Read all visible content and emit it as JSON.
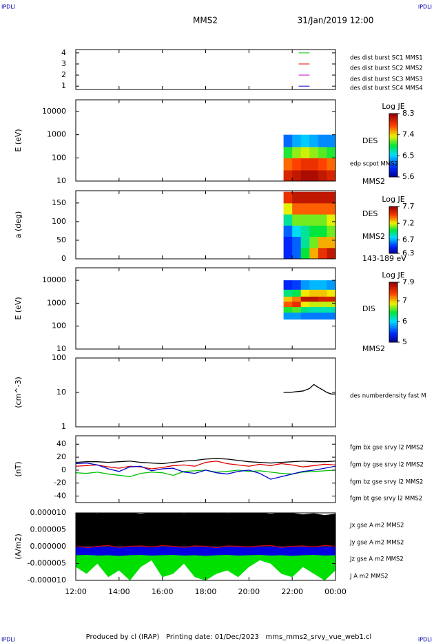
{
  "header": {
    "corner_labels": [
      "IPDLI",
      "IPDLI",
      "IPDLI",
      "IPDLI"
    ],
    "title": "MMS2",
    "date": "31/Jan/2019 12:00"
  },
  "footer": "Produced by cl (IRAP)   Printing date: 01/Dec/2023   mms_mms2_srvy_vue_web1.cl",
  "chart_data": [
    {
      "type": "availability",
      "xlim": [
        12,
        24
      ],
      "ylim": [
        0.7,
        4.3
      ],
      "yticks": [
        1,
        2,
        3,
        4
      ],
      "series": [
        {
          "name": "des dist burst SC1 MMS1",
          "color": "#0000c8",
          "x": [
            22.3,
            22.8
          ],
          "y": 1
        },
        {
          "name": "des dist burst SC2 MMS2",
          "color": "#d000d0",
          "x": [
            22.3,
            22.8
          ],
          "y": 2
        },
        {
          "name": "des dist burst SC3 MMS3",
          "color": "#e00000",
          "x": [
            22.3,
            22.8
          ],
          "y": 3
        },
        {
          "name": "des dist burst SC4 MMS4",
          "color": "#00c000",
          "x": [
            22.3,
            22.8
          ],
          "y": 4
        }
      ]
    },
    {
      "type": "heatmap",
      "ylabel": "E (eV)",
      "log": true,
      "xlim": [
        12,
        24
      ],
      "ylim": [
        10,
        32000
      ],
      "yticks": [
        10,
        100,
        1000,
        10000
      ],
      "annotations": [
        "DES",
        "edp scpot MMS2",
        "MMS2"
      ],
      "colorbar_label": "Log JE",
      "clim": [
        5.6,
        8.3
      ],
      "cticks": [
        5.6,
        6.5,
        7.4,
        8.3
      ],
      "x_bins": [
        21.6,
        22.0,
        22.4,
        22.8,
        23.2,
        23.6,
        24
      ],
      "y_bins": [
        10,
        30,
        100,
        300,
        1000
      ],
      "z": [
        [
          8.0,
          8.1,
          8.2,
          8.2,
          8.1,
          8.0
        ],
        [
          7.7,
          7.8,
          7.9,
          7.9,
          7.8,
          7.7
        ],
        [
          7.0,
          7.2,
          7.3,
          7.2,
          7.1,
          7.0
        ],
        [
          6.2,
          6.4,
          6.5,
          6.4,
          6.3,
          6.3
        ]
      ]
    },
    {
      "type": "heatmap",
      "ylabel": "a (deg)",
      "log": false,
      "xlim": [
        12,
        24
      ],
      "ylim": [
        0,
        183
      ],
      "yticks": [
        0,
        50,
        100,
        150
      ],
      "annotations": [
        "DES",
        "MMS2",
        "143-189 eV"
      ],
      "colorbar_label": "Log JE",
      "clim": [
        6.3,
        7.7
      ],
      "cticks": [
        6.3,
        6.7,
        7.2,
        7.7
      ],
      "x_bins": [
        21.6,
        22.0,
        22.4,
        22.8,
        23.2,
        23.6,
        24
      ],
      "y_bins": [
        0,
        30,
        60,
        90,
        120,
        150,
        180
      ],
      "z": [
        [
          6.5,
          6.6,
          7.0,
          7.3,
          7.5,
          7.6
        ],
        [
          6.5,
          6.6,
          6.9,
          7.1,
          7.3,
          7.3
        ],
        [
          6.6,
          6.8,
          6.9,
          7.0,
          7.0,
          7.1
        ],
        [
          6.9,
          7.1,
          7.1,
          7.1,
          7.1,
          7.2
        ],
        [
          7.2,
          7.4,
          7.4,
          7.4,
          7.4,
          7.4
        ],
        [
          7.5,
          7.6,
          7.6,
          7.6,
          7.6,
          7.6
        ]
      ]
    },
    {
      "type": "heatmap",
      "ylabel": "E (eV)",
      "log": true,
      "xlim": [
        12,
        24
      ],
      "ylim": [
        10,
        35000
      ],
      "yticks": [
        10,
        100,
        1000,
        10000
      ],
      "annotations": [
        "DIS",
        "MMS2"
      ],
      "colorbar_label": "Log JE",
      "clim": [
        5.0,
        7.9
      ],
      "cticks": [
        5.0,
        6.0,
        7.0,
        7.9
      ],
      "x_bins": [
        21.6,
        22.0,
        22.4,
        22.8,
        23.2,
        23.6,
        24
      ],
      "y_bins": [
        200,
        400,
        700,
        1200,
        2000,
        4000,
        10000
      ],
      "z": [
        [
          5.8,
          5.8,
          5.7,
          5.7,
          5.7,
          5.7
        ],
        [
          6.5,
          6.6,
          6.3,
          6.2,
          6.2,
          6.2
        ],
        [
          7.3,
          7.5,
          6.9,
          6.8,
          6.8,
          6.8
        ],
        [
          7.0,
          7.2,
          7.7,
          7.7,
          7.6,
          7.6
        ],
        [
          6.3,
          6.4,
          6.9,
          7.0,
          7.0,
          6.9
        ],
        [
          5.4,
          5.5,
          5.8,
          5.9,
          5.9,
          5.8
        ]
      ]
    },
    {
      "type": "line",
      "ylabel": "(cm^-3)",
      "log": true,
      "xlim": [
        12,
        24
      ],
      "ylim": [
        1,
        100
      ],
      "yticks": [
        1,
        10,
        100
      ],
      "x": [
        21.6,
        21.9,
        22.2,
        22.5,
        22.8,
        23.0,
        23.2,
        23.4,
        23.6,
        23.8,
        24.0
      ],
      "series": [
        {
          "name": "des numberdensity fast M",
          "color": "#000000",
          "values": [
            10,
            10,
            10.5,
            11,
            13,
            17,
            14,
            12,
            10,
            9,
            9
          ]
        }
      ]
    },
    {
      "type": "line",
      "ylabel": "(nT)",
      "log": false,
      "xlim": [
        12,
        24
      ],
      "ylim": [
        -50,
        53
      ],
      "yticks": [
        -40,
        -20,
        0,
        20,
        40
      ],
      "x": [
        12,
        12.5,
        13,
        13.5,
        14,
        14.5,
        15,
        15.5,
        16,
        16.5,
        17,
        17.5,
        18,
        18.5,
        19,
        19.5,
        20,
        20.5,
        21,
        21.5,
        22,
        22.5,
        23,
        23.5,
        24
      ],
      "series": [
        {
          "name": "fgm bx gse srvy l2 MMS2",
          "color": "#e00000",
          "values": [
            6,
            7,
            8,
            5,
            3,
            6,
            5,
            2,
            4,
            7,
            8,
            6,
            12,
            14,
            10,
            8,
            6,
            9,
            7,
            10,
            8,
            5,
            7,
            9,
            8
          ]
        },
        {
          "name": "fgm by gse srvy l2 MMS2",
          "color": "#00c000",
          "values": [
            -4,
            -5,
            -3,
            -6,
            -8,
            -10,
            -5,
            -3,
            -4,
            -8,
            -2,
            -1,
            0,
            -3,
            -2,
            0,
            -2,
            -1,
            -3,
            -5,
            -6,
            -3,
            -2,
            -1,
            0
          ]
        },
        {
          "name": "fgm bz gse srvy l2 MMS2",
          "color": "#0000d0",
          "values": [
            10,
            11,
            8,
            2,
            -2,
            5,
            6,
            -1,
            2,
            3,
            -3,
            -5,
            0,
            -4,
            -6,
            -2,
            0,
            -5,
            -14,
            -10,
            -6,
            -2,
            0,
            3,
            6
          ]
        },
        {
          "name": "fgm bt gse srvy l2 MMS2",
          "color": "#000000",
          "values": [
            12,
            13,
            13,
            12,
            13,
            14,
            12,
            11,
            10,
            12,
            14,
            15,
            17,
            18,
            17,
            15,
            13,
            12,
            11,
            12,
            13,
            14,
            13,
            13,
            14
          ]
        }
      ]
    },
    {
      "type": "area",
      "ylabel": "(A/m2)",
      "log": false,
      "xlim": [
        12,
        24
      ],
      "ylim": [
        -1e-05,
        1e-05
      ],
      "yticks": [
        {
          "value": -1e-05,
          "label": "-0.000010"
        },
        {
          "value": -5e-06,
          "label": "-0.000005"
        },
        {
          "value": 0,
          "label": "0.000000"
        },
        {
          "value": 5e-06,
          "label": "0.000005"
        },
        {
          "value": 1e-05,
          "label": "0.000010"
        }
      ],
      "xticks": [
        {
          "value": 12,
          "label": "12:00"
        },
        {
          "value": 14,
          "label": "14:00"
        },
        {
          "value": 16,
          "label": "16:00"
        },
        {
          "value": 18,
          "label": "18:00"
        },
        {
          "value": 20,
          "label": "20:00"
        },
        {
          "value": 22,
          "label": "22:00"
        },
        {
          "value": 24,
          "label": "00:00"
        }
      ],
      "x": [
        12,
        12.5,
        13,
        13.5,
        14,
        14.5,
        15,
        15.5,
        16,
        16.5,
        17,
        17.5,
        18,
        18.5,
        19,
        19.5,
        20,
        20.5,
        21,
        21.5,
        22,
        22.5,
        23,
        23.5,
        24
      ],
      "series": [
        {
          "name": "Jx gse A m2 MMS2",
          "color": "#e00000",
          "fill": false,
          "values": [
            2e-07,
            -3e-07,
            1e-07,
            3e-07,
            -2e-07,
            1e-07,
            2e-07,
            -1e-07,
            3e-07,
            1e-07,
            -2e-07,
            2e-07,
            1e-07,
            -3e-07,
            2e-07,
            1e-07,
            -1e-07,
            2e-07,
            3e-07,
            -2e-07,
            1e-07,
            2e-07,
            -1e-07,
            3e-07,
            1e-07
          ]
        },
        {
          "name": "Jy gse A m2 MMS2",
          "color": "#00e000",
          "fill": true,
          "values": [
            -6e-06,
            -8e-06,
            -5e-06,
            -9e-06,
            -7e-06,
            -1e-05,
            -6e-06,
            -4e-06,
            -9e-06,
            -8e-06,
            -5e-06,
            -9e-06,
            -1e-05,
            -8e-06,
            -7e-06,
            -9e-06,
            -6e-06,
            -4e-06,
            -5e-06,
            -8e-06,
            -9e-06,
            -6e-06,
            -8e-06,
            -1e-05,
            -7e-06
          ]
        },
        {
          "name": "Jz gse A m2 MMS2",
          "color": "#0000e0",
          "fill": true,
          "values": [
            -2.5e-06,
            -2.4e-06,
            -2.6e-06,
            -2.5e-06,
            -2.7e-06,
            -2.5e-06,
            -2.4e-06,
            -2.6e-06,
            -2.5e-06,
            -2.4e-06,
            -2.6e-06,
            -2.5e-06,
            -2.7e-06,
            -2.5e-06,
            -2.4e-06,
            -2.6e-06,
            -2.5e-06,
            -2.4e-06,
            -2.6e-06,
            -2.5e-06,
            -2.7e-06,
            -2.5e-06,
            -2.4e-06,
            -2.6e-06,
            -2.5e-06
          ]
        },
        {
          "name": "J A m2 MMS2",
          "color": "#000000",
          "fill": true,
          "values": [
            9.9e-06,
            1e-05,
            9.8e-06,
            1e-05,
            9.9e-06,
            1e-05,
            9.7e-06,
            1e-05,
            9.9e-06,
            1e-05,
            9.8e-06,
            1e-05,
            9.9e-06,
            1e-05,
            9.8e-06,
            1e-05,
            9.9e-06,
            1e-05,
            9.7e-06,
            1e-05,
            9.9e-06,
            9.5e-06,
            9.8e-06,
            9.3e-06,
            9.7e-06
          ]
        }
      ]
    }
  ]
}
